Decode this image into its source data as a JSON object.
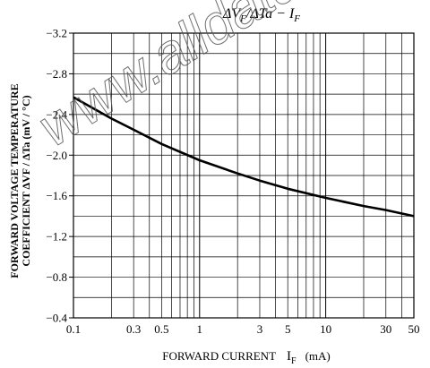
{
  "chart_data": {
    "type": "line",
    "title_parts": {
      "delta_vf": "ΔV",
      "sub_f1": "F",
      "mid": "/ΔTa − I",
      "sub_f2": "F"
    },
    "ylabel_line1": "FORWARD VOLTAGE TEMPERATURE",
    "ylabel_line2": "COEFFICIENT ΔVF / ΔTa (mV / °C)",
    "xlabel_main": "FORWARD CURRENT",
    "xlabel_sym": "I",
    "xlabel_sub": "F",
    "xlabel_unit": "(mA)",
    "x_scale": "log",
    "xlim": [
      0.1,
      50
    ],
    "ylim": [
      -0.4,
      -3.2
    ],
    "x_ticks": [
      0.1,
      0.3,
      0.5,
      1,
      3,
      5,
      10,
      30,
      50
    ],
    "x_tick_labels": [
      "0.1",
      "0.3",
      "0.5",
      "1",
      "3",
      "5",
      "10",
      "30",
      "50"
    ],
    "y_ticks": [
      -3.2,
      -2.8,
      -2.4,
      -2.0,
      -1.6,
      -1.2,
      -0.8,
      -0.4
    ],
    "y_tick_labels": [
      "−3.2",
      "−2.8",
      "−2.4",
      "−2.0",
      "−1.6",
      "−1.2",
      "−0.8",
      "−0.4"
    ],
    "grid": true,
    "series": [
      {
        "x": [
          0.1,
          0.2,
          0.3,
          0.5,
          1,
          2,
          3,
          5,
          10,
          20,
          30,
          50
        ],
        "y": [
          -2.57,
          -2.36,
          -2.25,
          -2.11,
          -1.95,
          -1.82,
          -1.75,
          -1.67,
          -1.58,
          -1.5,
          -1.46,
          -1.4
        ]
      }
    ],
    "color": "#000000"
  },
  "watermark": "www.alldatasheet"
}
